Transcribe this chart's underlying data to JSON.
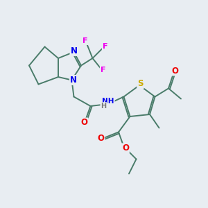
{
  "bg_color": "#e8edf2",
  "bond_color": "#4a7c6a",
  "atom_colors": {
    "N": "#0000ee",
    "O": "#ee0000",
    "S": "#ccaa00",
    "F": "#ee00ee",
    "H": "#777777",
    "C": "#4a7c6a"
  },
  "font_size": 8.5,
  "lw": 1.4
}
